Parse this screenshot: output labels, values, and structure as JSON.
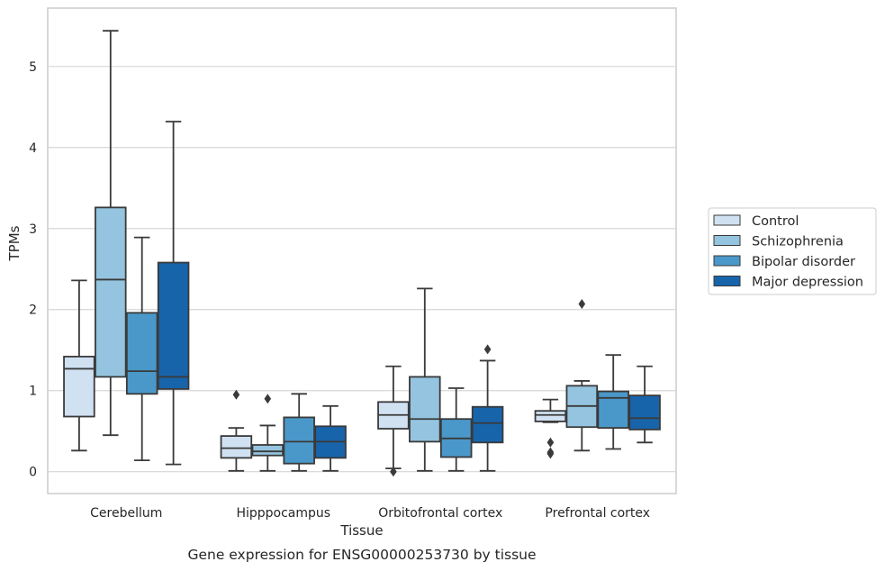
{
  "chart_data": {
    "type": "box",
    "caption": "Gene expression for ENSG00000253730 by tissue",
    "xlabel": "Tissue",
    "ylabel": "TPMs",
    "ylim": [
      -0.27,
      5.72
    ],
    "yticks": [
      0,
      1,
      2,
      3,
      4,
      5
    ],
    "grid": "horizontal",
    "legend_position": "right",
    "categories": [
      "Cerebellum",
      "Hipppocampus",
      "Orbitofrontal cortex",
      "Prefrontal cortex"
    ],
    "series": [
      {
        "name": "Control",
        "color": "#d0e1f2",
        "boxes": [
          {
            "low": 0.26,
            "q1": 0.68,
            "median": 1.27,
            "q3": 1.42,
            "high": 2.36,
            "outliers": []
          },
          {
            "low": 0.01,
            "q1": 0.17,
            "median": 0.29,
            "q3": 0.44,
            "high": 0.54,
            "outliers": [
              0.95
            ]
          },
          {
            "low": 0.04,
            "q1": 0.53,
            "median": 0.7,
            "q3": 0.86,
            "high": 1.3,
            "outliers": [
              0.0
            ]
          },
          {
            "low": 0.61,
            "q1": 0.62,
            "median": 0.7,
            "q3": 0.75,
            "high": 0.89,
            "outliers": [
              0.36,
              0.24,
              0.22
            ]
          }
        ]
      },
      {
        "name": "Schizophrenia",
        "color": "#94c4df",
        "boxes": [
          {
            "low": 0.45,
            "q1": 1.17,
            "median": 2.37,
            "q3": 3.26,
            "high": 5.44,
            "outliers": []
          },
          {
            "low": 0.01,
            "q1": 0.2,
            "median": 0.25,
            "q3": 0.33,
            "high": 0.57,
            "outliers": [
              0.9
            ]
          },
          {
            "low": 0.01,
            "q1": 0.37,
            "median": 0.65,
            "q3": 1.17,
            "high": 2.26,
            "outliers": []
          },
          {
            "low": 0.26,
            "q1": 0.55,
            "median": 0.81,
            "q3": 1.06,
            "high": 1.12,
            "outliers": [
              2.07
            ]
          }
        ]
      },
      {
        "name": "Bipolar disorder",
        "color": "#4a98c9",
        "boxes": [
          {
            "low": 0.14,
            "q1": 0.96,
            "median": 1.24,
            "q3": 1.96,
            "high": 2.89,
            "outliers": []
          },
          {
            "low": 0.01,
            "q1": 0.1,
            "median": 0.37,
            "q3": 0.67,
            "high": 0.96,
            "outliers": []
          },
          {
            "low": 0.01,
            "q1": 0.18,
            "median": 0.41,
            "q3": 0.65,
            "high": 1.03,
            "outliers": []
          },
          {
            "low": 0.28,
            "q1": 0.54,
            "median": 0.91,
            "q3": 0.99,
            "high": 1.44,
            "outliers": []
          }
        ]
      },
      {
        "name": "Major depression",
        "color": "#1764ab",
        "boxes": [
          {
            "low": 0.09,
            "q1": 1.02,
            "median": 1.17,
            "q3": 2.58,
            "high": 4.32,
            "outliers": []
          },
          {
            "low": 0.01,
            "q1": 0.17,
            "median": 0.37,
            "q3": 0.56,
            "high": 0.81,
            "outliers": []
          },
          {
            "low": 0.01,
            "q1": 0.36,
            "median": 0.6,
            "q3": 0.8,
            "high": 1.37,
            "outliers": [
              1.51
            ]
          },
          {
            "low": 0.36,
            "q1": 0.52,
            "median": 0.66,
            "q3": 0.94,
            "high": 1.3,
            "outliers": []
          }
        ]
      }
    ]
  }
}
